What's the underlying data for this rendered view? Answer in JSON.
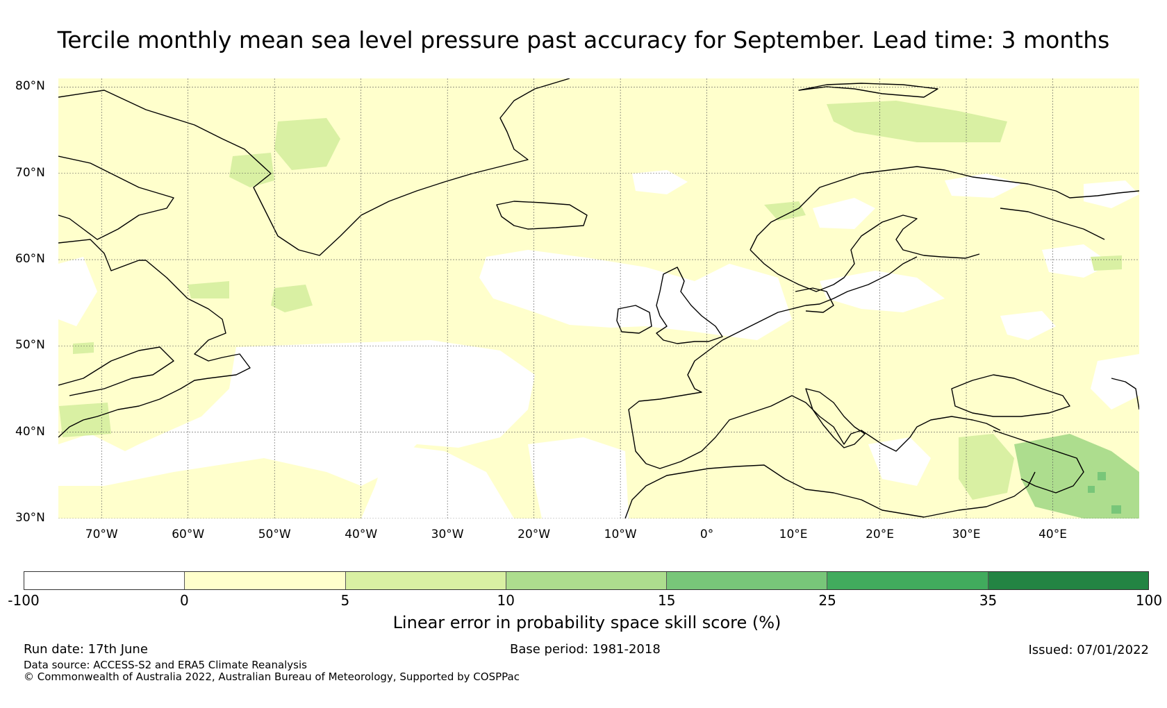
{
  "title": "Tercile monthly mean sea level pressure past accuracy for September. Lead time: 3 months",
  "map": {
    "lat_labels": [
      "80°N",
      "70°N",
      "60°N",
      "50°N",
      "40°N",
      "30°N"
    ],
    "lat_values": [
      80,
      70,
      60,
      50,
      40,
      30
    ],
    "lon_labels": [
      "70°W",
      "60°W",
      "50°W",
      "40°W",
      "30°W",
      "20°W",
      "10°W",
      "0°",
      "10°E",
      "20°E",
      "30°E",
      "40°E"
    ],
    "lon_values": [
      -70,
      -60,
      -50,
      -40,
      -30,
      -20,
      -10,
      0,
      10,
      20,
      30,
      40
    ],
    "extent": {
      "lon_min": -75,
      "lon_max": 50,
      "lat_min": 30,
      "lat_max": 81
    },
    "colors": {
      "land_line": "#000000",
      "grid_line": "#555555"
    }
  },
  "colorbar": {
    "bounds": [
      "-100",
      "0",
      "5",
      "10",
      "15",
      "25",
      "35",
      "100"
    ],
    "colors": [
      "#ffffff",
      "#ffffcc",
      "#d9f0a3",
      "#addd8e",
      "#78c679",
      "#41ab5d",
      "#238443"
    ],
    "label": "Linear error in probability space skill score (%)"
  },
  "footer": {
    "run_date": "Run date: 17th June",
    "base_period": "Base period: 1981-2018",
    "issued": "Issued: 07/01/2022",
    "data_source": "Data source: ACCESS-S2 and ERA5 Climate Reanalysis",
    "copyright": "© Commonwealth of Australia 2022, Australian Bureau of Meteorology, Supported by COSPPac"
  }
}
